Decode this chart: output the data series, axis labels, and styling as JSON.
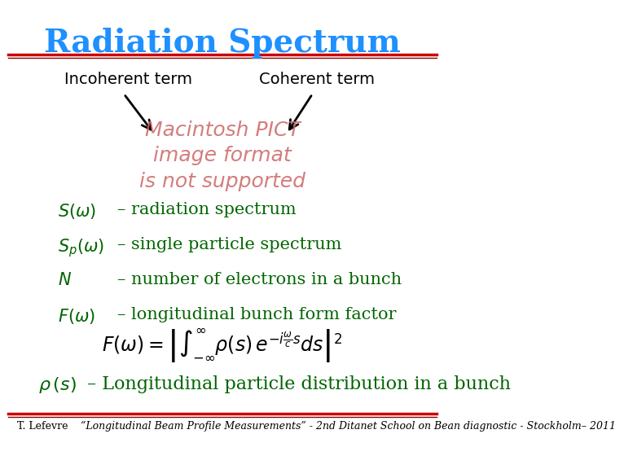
{
  "title": "Radiation Spectrum",
  "title_color": "#1E90FF",
  "title_fontsize": 28,
  "bg_color": "#FFFFFF",
  "top_line_color": "#CC0000",
  "top_line2_color": "#8B0000",
  "incoherent_label": "Incoherent term",
  "coherent_label": "Coherent term",
  "label_fontsize": 14,
  "label_color": "#000000",
  "pict_text": "Macintosh PICT\nimage format\nis not supported",
  "pict_color": "#CC6666",
  "pict_fontsize": 18,
  "bullets": [
    [
      "$S(\\omega)$",
      "– radiation spectrum"
    ],
    [
      "$S_p(\\omega)$",
      "– single particle spectrum"
    ],
    [
      "$N$",
      "– number of electrons in a bunch"
    ],
    [
      "$F(\\omega)$",
      "– longitudinal bunch form factor"
    ]
  ],
  "bullet_color_sym": "#006400",
  "bullet_color_txt": "#006400",
  "bullet_fontsize": 15,
  "formula": "$F(\\omega)=\\left|\\int_{-\\infty}^{\\infty}\\rho(s)\\,e^{-i\\frac{\\omega}{c}s}ds\\right|^2$",
  "formula_fontsize": 17,
  "formula_color": "#000000",
  "rho_line_sym": "$\\rho\\,(s)$",
  "rho_line_txt": "– Longitudinal particle distribution in a bunch",
  "rho_fontsize": 16,
  "rho_color": "#006400",
  "footer_left": "T. Lefevre",
  "footer_right": "“Longitudinal Beam Profile Measurements” - 2nd Ditanet School on Bean diagnostic - Stockholm– 2011",
  "footer_fontsize": 9,
  "footer_color": "#000000"
}
